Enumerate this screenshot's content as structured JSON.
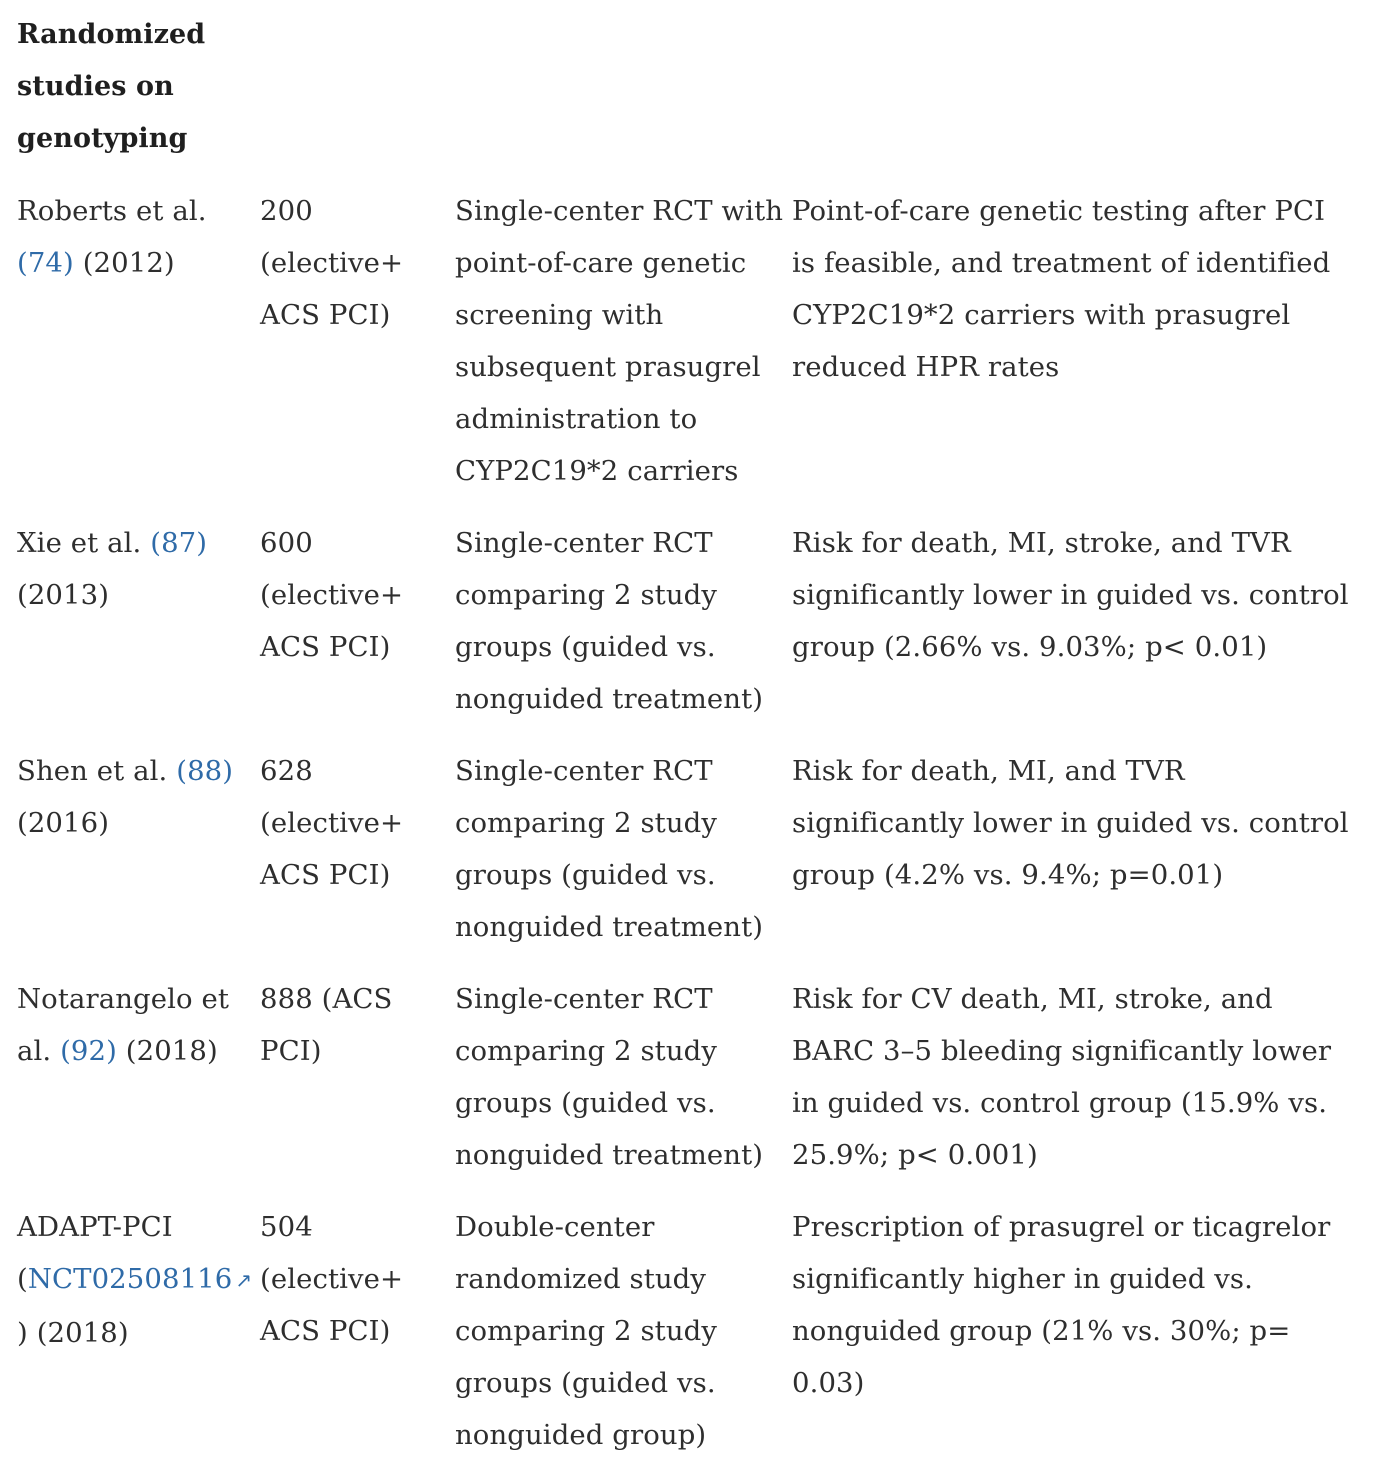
{
  "heading": "Randomized studies on genotyping",
  "rows": [
    {
      "study_name": "Roberts et al.",
      "ref": "(74)",
      "year": "(2012)",
      "patients": "200 (elective+ ACS PCI)",
      "design": "Single-center RCT with point-of-care genetic screening with subsequent prasugrel administration to CYP2C19*2 carriers",
      "result": "Point-of-care genetic testing after PCI is feasible, and treatment of identified CYP2C19*2 carriers with prasugrel reduced HPR rates"
    },
    {
      "study_name": "Xie et al.",
      "ref": "(87)",
      "year": "(2013)",
      "patients": "600 (elective+ ACS PCI)",
      "design": "Single-center RCT comparing 2 study groups (guided vs. nonguided treatment)",
      "result": "Risk for death, MI, stroke, and TVR significantly lower in guided vs. control group (2.66% vs. 9.03%; p< 0.01)"
    },
    {
      "study_name": "Shen et al.",
      "ref": "(88)",
      "year": "(2016)",
      "patients": "628 (elective+ ACS PCI)",
      "design": "Single-center RCT comparing 2 study groups (guided vs. nonguided treatment)",
      "result": "Risk for death, MI, and TVR significantly lower in guided vs. control group (4.2% vs. 9.4%; p=0.01)"
    },
    {
      "study_name": "Notarangelo et al.",
      "ref": "(92)",
      "year": "(2018)",
      "patients": "888 (ACS PCI)",
      "design": "Single-center RCT comparing 2 study groups (guided vs. nonguided treatment)",
      "result": "Risk for CV death, MI, stroke, and BARC 3–5 bleeding significantly lower in guided vs. control group (15.9% vs. 25.9%; p< 0.001)"
    },
    {
      "study_name": "ADAPT-PCI",
      "link_open": "(",
      "link_text": "NCT02508116",
      "link_icon": "external-link-icon",
      "link_close": ")",
      "year": "(2018)",
      "patients": "504 (elective+ ACS PCI)",
      "design": "Double-center randomized study comparing 2 study groups (guided vs. nonguided group)",
      "result": "Prescription of prasugrel or ticagrelor significantly higher in guided vs. nonguided group (21% vs. 30%; p= 0.03)"
    }
  ],
  "colors": {
    "text": "#2e2e2e",
    "link": "#2f6ba8",
    "background": "#ffffff"
  }
}
